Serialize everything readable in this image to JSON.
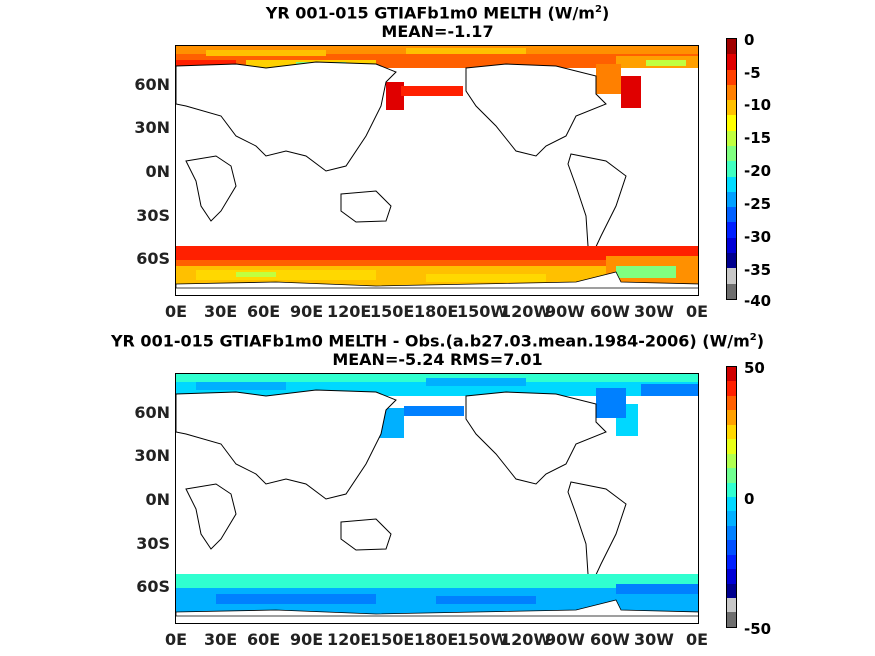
{
  "panels": [
    {
      "title_line1_pre": "YR 001-015 GTIAFb1m0  MELTH (W/m",
      "title_sup": "2",
      "title_line1_post": ")",
      "title_line2": "MEAN=-1.17",
      "lat_labels": [
        "60N",
        "30N",
        "0N",
        "30S",
        "60S"
      ],
      "lon_labels": [
        "0E",
        "30E",
        "60E",
        "90E",
        "120E",
        "150E",
        "180E",
        "150W",
        "120W",
        "90W",
        "60W",
        "30W",
        "0E"
      ],
      "colorbar_labels": [
        "0",
        "-5",
        "-10",
        "-15",
        "-20",
        "-25",
        "-30",
        "-35",
        "-40"
      ],
      "colorbar_range": [
        -40,
        0
      ],
      "colorbar_colors": [
        "#6e6e6e",
        "#c8c8c8",
        "#00008f",
        "#0000d6",
        "#0020ff",
        "#0060ff",
        "#00a0ff",
        "#00dcff",
        "#40ffc0",
        "#80ff80",
        "#c0ff40",
        "#ffff00",
        "#ffc000",
        "#ff8000",
        "#ff4000",
        "#e00000",
        "#a00000"
      ]
    },
    {
      "title_line1_pre": "YR 001-015 GTIAFb1m0 MELTH - Obs.(a.b27.03.mean.1984-2006) (W/m",
      "title_sup": "2",
      "title_line1_post": ")",
      "title_line2": "MEAN=-5.24 RMS=7.01",
      "lat_labels": [
        "60N",
        "30N",
        "0N",
        "30S",
        "60S"
      ],
      "lon_labels": [
        "0E",
        "30E",
        "60E",
        "90E",
        "120E",
        "150E",
        "180E",
        "150W",
        "120W",
        "90W",
        "60W",
        "30W",
        "0E"
      ],
      "colorbar_labels": [
        "50",
        "0",
        "-50"
      ],
      "colorbar_range": [
        -50,
        50
      ],
      "colorbar_colors": [
        "#6e6e6e",
        "#c8c8c8",
        "#00008f",
        "#0000d6",
        "#0020ff",
        "#0050ff",
        "#0080ff",
        "#00b0ff",
        "#00d8ff",
        "#30ffd0",
        "#70ff90",
        "#b0ff50",
        "#e8ff18",
        "#ffd800",
        "#ffa000",
        "#ff6000",
        "#ff2000",
        "#d00000"
      ]
    }
  ]
}
